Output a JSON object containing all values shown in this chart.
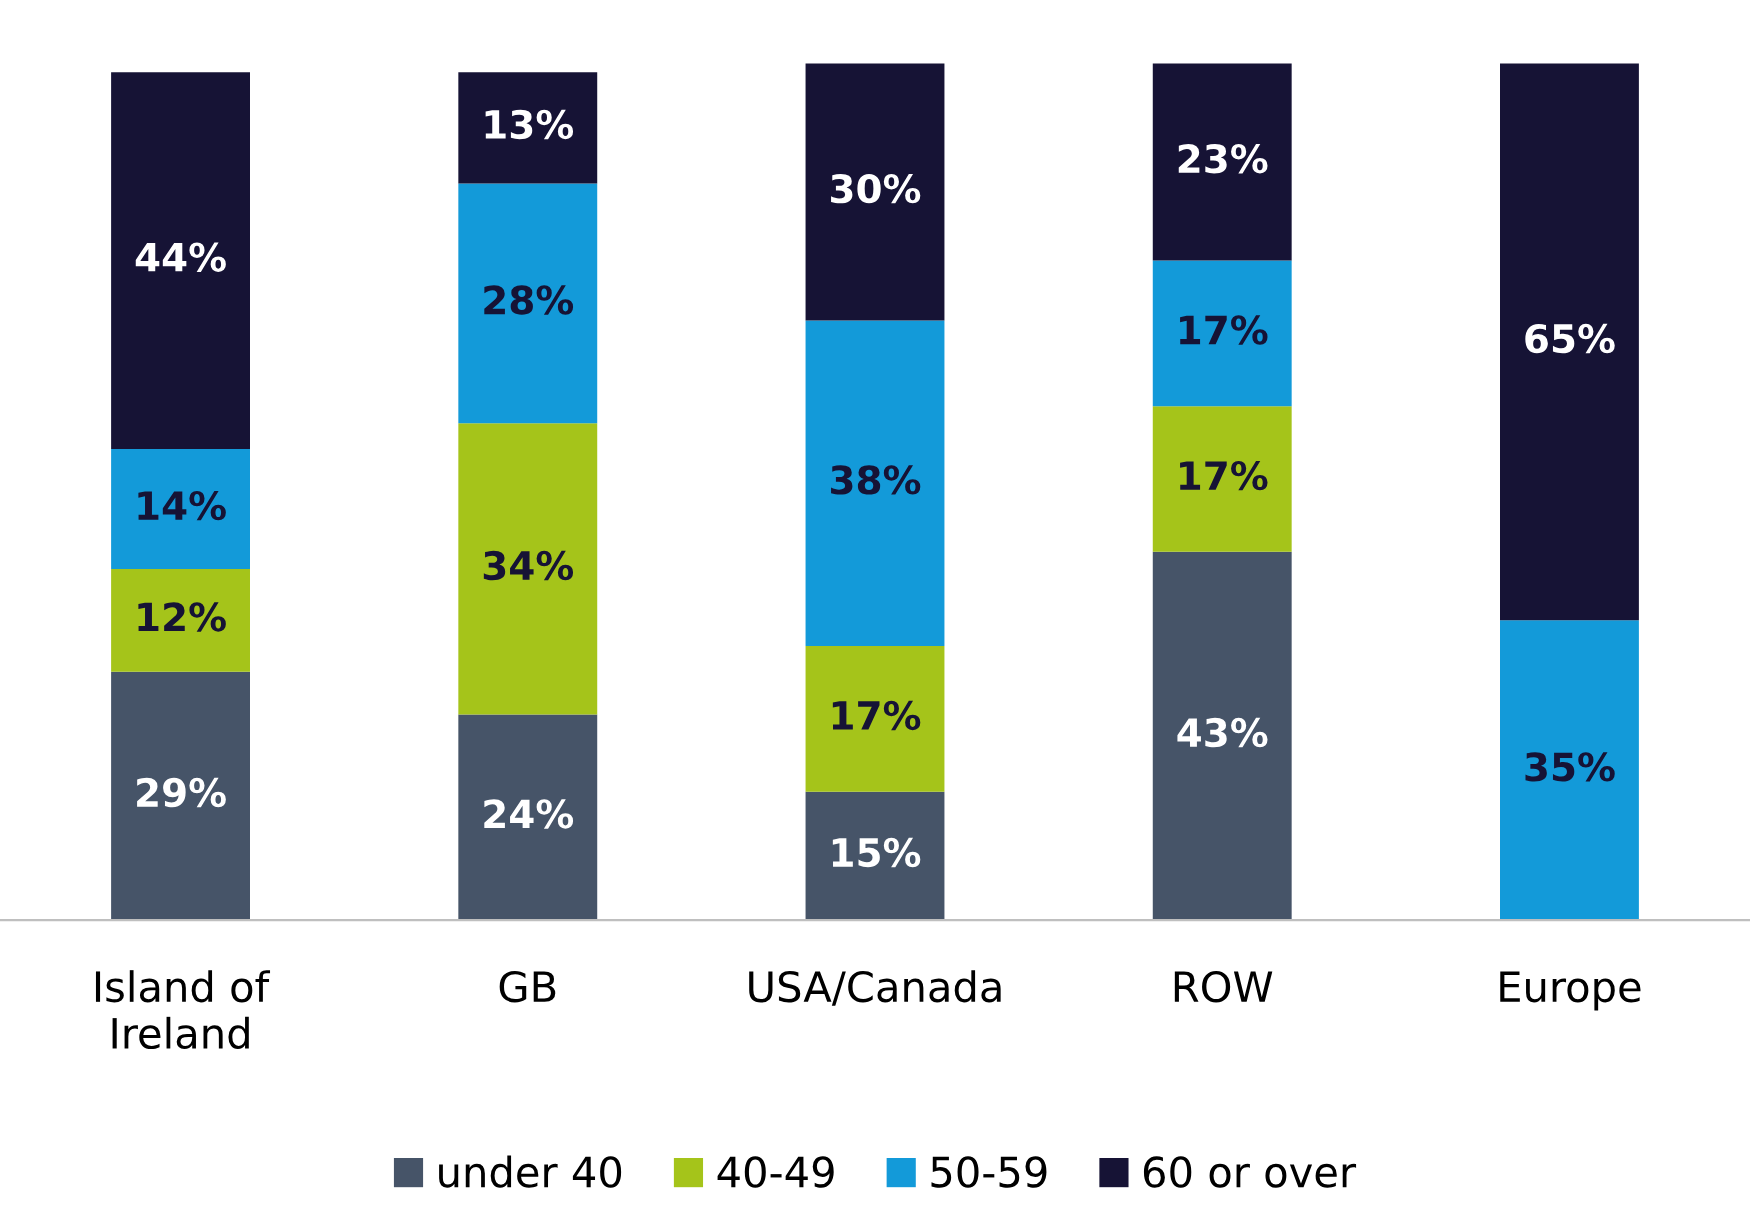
{
  "chart_data": {
    "type": "bar",
    "stacked": true,
    "legend": "bottom",
    "grid": false,
    "tick_labels": "x",
    "categories": [
      "Island of\nIreland",
      "GB",
      "USA/Canada",
      "ROW",
      "Europe"
    ],
    "series": [
      {
        "name": "under 40",
        "color": "#465468",
        "values": [
          29,
          24,
          15,
          43,
          null
        ],
        "value_labels": [
          "29%",
          "24%",
          "15%",
          "43%",
          null
        ]
      },
      {
        "name": "40-49",
        "color": "#a5c41a",
        "values": [
          12,
          34,
          17,
          17,
          null
        ],
        "value_labels": [
          "12%",
          "34%",
          "17%",
          "17%",
          null
        ]
      },
      {
        "name": "50-59",
        "color": "#139ad9",
        "values": [
          14,
          28,
          38,
          17,
          35
        ],
        "value_labels": [
          "14%",
          "28%",
          "38%",
          "17%",
          "35%"
        ]
      },
      {
        "name": "60 or over",
        "color": "#161335",
        "values": [
          44,
          13,
          30,
          23,
          65
        ],
        "value_labels": [
          "44%",
          "13%",
          "30%",
          "23%",
          "65%"
        ]
      }
    ]
  }
}
